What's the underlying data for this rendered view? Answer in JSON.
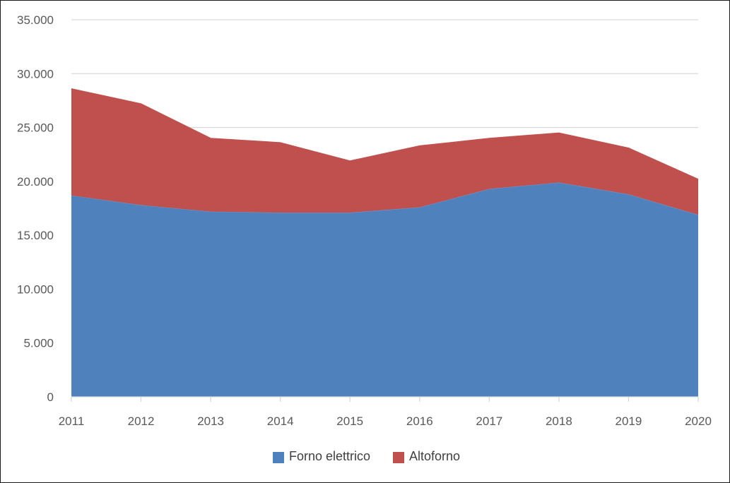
{
  "chart_data": {
    "type": "area",
    "stacked": true,
    "categories": [
      "2011",
      "2012",
      "2013",
      "2014",
      "2015",
      "2016",
      "2017",
      "2018",
      "2019",
      "2020"
    ],
    "series": [
      {
        "name": "Forno elettrico",
        "color": "#4f81bd",
        "values": [
          18700,
          17800,
          17200,
          17100,
          17100,
          17600,
          19300,
          19900,
          18800,
          16900
        ]
      },
      {
        "name": "Altoforno",
        "color": "#c0504d",
        "values": [
          9900,
          9400,
          6800,
          6500,
          4800,
          5700,
          4700,
          4600,
          4300,
          3300
        ]
      }
    ],
    "y_ticks": [
      "0",
      "5.000",
      "10.000",
      "15.000",
      "20.000",
      "25.000",
      "30.000",
      "35.000"
    ],
    "ylim": [
      0,
      35000
    ],
    "grid": true,
    "legend_position": "bottom"
  }
}
